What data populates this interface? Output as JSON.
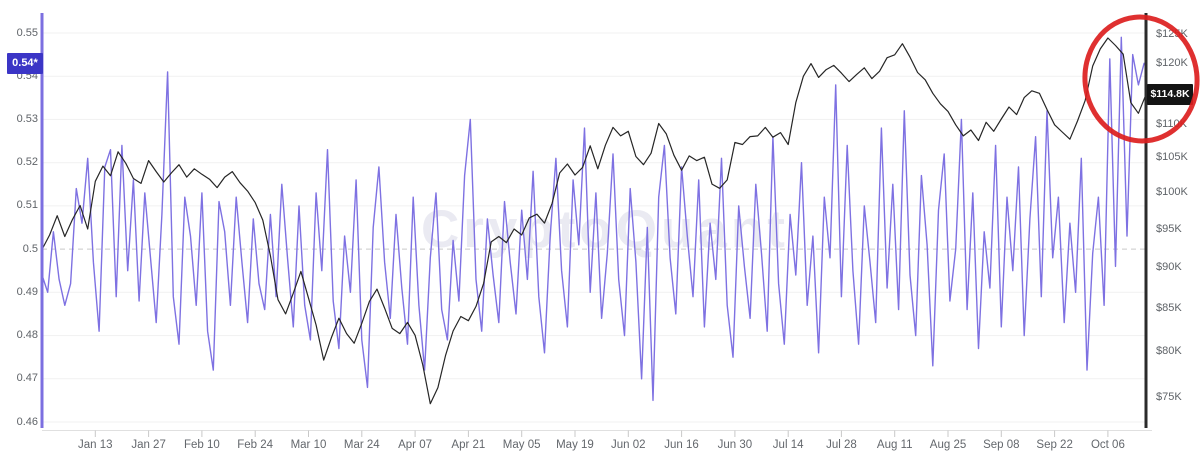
{
  "chart_data": {
    "type": "line",
    "title": "",
    "watermark": "CryptoQuant",
    "grid": "horizontal-only",
    "x_axis": {
      "domain_days": [
        0,
        290
      ],
      "tick_labels": [
        "Jan 13",
        "Jan 27",
        "Feb 10",
        "Feb 24",
        "Mar 10",
        "Mar 24",
        "Apr 07",
        "Apr 21",
        "May 05",
        "May 19",
        "Jun 02",
        "Jun 16",
        "Jun 30",
        "Jul 14",
        "Jul 28",
        "Aug 11",
        "Aug 25",
        "Sep 08",
        "Sep 22",
        "Oct 06"
      ],
      "tick_days": [
        14,
        28,
        42,
        56,
        70,
        84,
        98,
        112,
        126,
        140,
        154,
        168,
        182,
        196,
        210,
        224,
        238,
        252,
        266,
        280
      ]
    },
    "left_axis": {
      "scale": "linear",
      "range": [
        0.46,
        0.55
      ],
      "tick_values": [
        0.55,
        0.54,
        0.53,
        0.52,
        0.51,
        0.5,
        0.49,
        0.48,
        0.47,
        0.46
      ],
      "tick_labels": [
        "0.55",
        "0.54",
        "0.53",
        "0.52",
        "0.51",
        "0.5",
        "0.49",
        "0.48",
        "0.47",
        "0.46"
      ],
      "latest_value": 0.543,
      "latest_badge": "0.54*",
      "badge_color": "#3b35c6",
      "axis_line_color": "#7c6fe0"
    },
    "right_axis": {
      "scale": "log",
      "range_usd_k": [
        75,
        125
      ],
      "tick_values_usd_k": [
        125,
        120,
        110,
        105,
        100,
        95,
        90,
        85,
        80,
        75
      ],
      "tick_labels": [
        "$125K",
        "$120K",
        "$110K",
        "$105K",
        "$100K",
        "$95K",
        "$90K",
        "$85K",
        "$80K",
        "$75K"
      ],
      "latest_value_usd_k": 114.8,
      "latest_badge": "$114.8K",
      "badge_color": "#141414",
      "axis_line_color": "#2b2b2b"
    },
    "reference_line": {
      "axis": "left",
      "value": 0.5,
      "style": "dashed",
      "color": "#c9c9c9"
    },
    "series": [
      {
        "name": "purple-line-left-axis",
        "axis": "left",
        "color": "#7e71e2",
        "stroke_width": 1.4,
        "step_days": 1.5,
        "values": [
          0.494,
          0.49,
          0.504,
          0.493,
          0.487,
          0.492,
          0.514,
          0.506,
          0.521,
          0.497,
          0.481,
          0.519,
          0.523,
          0.489,
          0.524,
          0.495,
          0.516,
          0.488,
          0.513,
          0.498,
          0.483,
          0.508,
          0.541,
          0.489,
          0.478,
          0.512,
          0.503,
          0.487,
          0.513,
          0.481,
          0.472,
          0.511,
          0.504,
          0.487,
          0.512,
          0.497,
          0.483,
          0.507,
          0.492,
          0.486,
          0.508,
          0.489,
          0.515,
          0.498,
          0.482,
          0.51,
          0.487,
          0.479,
          0.513,
          0.495,
          0.523,
          0.488,
          0.477,
          0.503,
          0.49,
          0.516,
          0.479,
          0.468,
          0.505,
          0.519,
          0.497,
          0.484,
          0.508,
          0.491,
          0.478,
          0.512,
          0.487,
          0.472,
          0.498,
          0.513,
          0.486,
          0.479,
          0.502,
          0.488,
          0.517,
          0.53,
          0.493,
          0.481,
          0.507,
          0.494,
          0.483,
          0.511,
          0.497,
          0.485,
          0.509,
          0.493,
          0.518,
          0.489,
          0.476,
          0.503,
          0.521,
          0.495,
          0.482,
          0.516,
          0.501,
          0.528,
          0.49,
          0.513,
          0.484,
          0.499,
          0.522,
          0.493,
          0.48,
          0.514,
          0.497,
          0.47,
          0.505,
          0.465,
          0.512,
          0.524,
          0.498,
          0.485,
          0.519,
          0.503,
          0.489,
          0.516,
          0.482,
          0.506,
          0.493,
          0.521,
          0.487,
          0.475,
          0.51,
          0.496,
          0.484,
          0.515,
          0.499,
          0.481,
          0.526,
          0.492,
          0.478,
          0.508,
          0.494,
          0.52,
          0.487,
          0.503,
          0.476,
          0.512,
          0.498,
          0.538,
          0.489,
          0.524,
          0.495,
          0.478,
          0.51,
          0.497,
          0.483,
          0.528,
          0.491,
          0.515,
          0.486,
          0.532,
          0.494,
          0.48,
          0.517,
          0.501,
          0.473,
          0.509,
          0.522,
          0.488,
          0.5,
          0.53,
          0.486,
          0.513,
          0.477,
          0.504,
          0.491,
          0.524,
          0.482,
          0.512,
          0.495,
          0.519,
          0.48,
          0.507,
          0.526,
          0.489,
          0.532,
          0.498,
          0.512,
          0.483,
          0.506,
          0.49,
          0.521,
          0.472,
          0.499,
          0.512,
          0.487,
          0.544,
          0.496,
          0.549,
          0.503,
          0.545,
          0.538,
          0.543
        ]
      },
      {
        "name": "black-price-line-right-axis",
        "axis": "right",
        "color": "#262626",
        "stroke_width": 1.2,
        "step_days": 2,
        "values": [
          92.3,
          94.2,
          96.8,
          94.0,
          96.3,
          98.2,
          95.0,
          101.6,
          103.8,
          102.4,
          105.9,
          104.2,
          102.0,
          101.3,
          104.6,
          103.0,
          101.5,
          102.8,
          104.0,
          102.2,
          103.4,
          102.6,
          101.9,
          100.7,
          102.2,
          103.0,
          101.4,
          100.2,
          98.6,
          96.2,
          91.5,
          86.0,
          84.3,
          86.8,
          89.5,
          86.2,
          83.0,
          79.0,
          81.5,
          83.8,
          82.0,
          80.9,
          83.2,
          85.8,
          87.3,
          85.0,
          82.6,
          82.0,
          83.3,
          81.8,
          78.5,
          74.3,
          76.0,
          79.5,
          82.3,
          84.0,
          83.5,
          85.2,
          88.0,
          93.3,
          94.0,
          93.2,
          95.0,
          94.2,
          96.5,
          97.0,
          95.8,
          98.5,
          102.8,
          104.1,
          102.5,
          103.6,
          106.8,
          103.4,
          106.9,
          109.6,
          108.3,
          109.0,
          105.2,
          104.0,
          105.7,
          110.2,
          108.6,
          105.4,
          103.2,
          105.3,
          104.6,
          105.1,
          101.2,
          100.6,
          101.8,
          107.3,
          107.0,
          108.2,
          108.3,
          109.6,
          108.1,
          108.8,
          107.0,
          113.5,
          117.8,
          119.9,
          117.6,
          118.9,
          119.6,
          118.3,
          116.9,
          118.1,
          119.2,
          117.4,
          118.6,
          120.9,
          121.4,
          123.3,
          121.0,
          118.4,
          117.2,
          115.0,
          113.3,
          112.1,
          110.0,
          108.3,
          109.2,
          107.6,
          110.4,
          109.0,
          110.9,
          112.8,
          111.6,
          114.3,
          115.4,
          115.0,
          112.4,
          110.0,
          108.9,
          107.8,
          110.6,
          113.8,
          119.5,
          122.4,
          124.3,
          123.0,
          121.5,
          113.5,
          111.8,
          114.8
        ]
      }
    ],
    "annotations": [
      {
        "type": "ellipse",
        "purpose": "highlight-recent-price-move",
        "color": "#dc1e1e",
        "stroke_width": 5
      }
    ]
  }
}
